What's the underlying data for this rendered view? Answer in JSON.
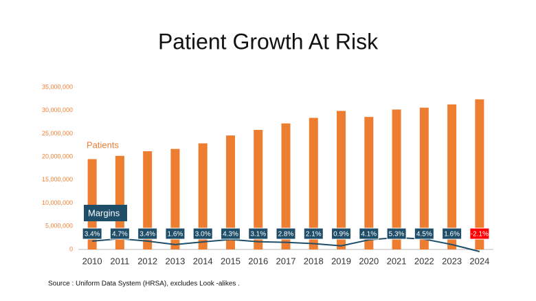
{
  "chart_data": {
    "type": "bar",
    "title": "Patient Growth At Risk",
    "categories": [
      "2010",
      "2011",
      "2012",
      "2013",
      "2014",
      "2015",
      "2016",
      "2017",
      "2018",
      "2019",
      "2020",
      "2021",
      "2022",
      "2023",
      "2024"
    ],
    "series": [
      {
        "name": "Patients",
        "type": "bar",
        "color": "#ed7d31",
        "values": [
          19500000,
          20200000,
          21200000,
          21700000,
          22900000,
          24600000,
          25800000,
          27200000,
          28400000,
          29900000,
          28600000,
          30200000,
          30600000,
          31300000,
          32400000
        ]
      },
      {
        "name": "Margins",
        "type": "line",
        "axis": "y2",
        "color": "#1f4e69",
        "values": [
          3.4,
          4.7,
          3.4,
          1.6,
          3.0,
          4.3,
          3.1,
          2.8,
          2.1,
          0.9,
          4.1,
          5.3,
          4.5,
          1.6,
          -2.1
        ],
        "value_labels": [
          "3.4%",
          "4.7%",
          "3.4%",
          "1.6%",
          "3.0%",
          "4.3%",
          "3.1%",
          "2.8%",
          "2.1%",
          "0.9%",
          "4.1%",
          "5.3%",
          "4.5%",
          "1.6%",
          "-2.1%"
        ],
        "value_label_colors": [
          "#1f4e69",
          "#1f4e69",
          "#1f4e69",
          "#1f4e69",
          "#1f4e69",
          "#1f4e69",
          "#1f4e69",
          "#1f4e69",
          "#1f4e69",
          "#1f4e69",
          "#1f4e69",
          "#1f4e69",
          "#1f4e69",
          "#1f4e69",
          "#ff0000"
        ]
      }
    ],
    "ylim": [
      0,
      35000000
    ],
    "yticks": [
      0,
      {
        "value": 5000000,
        "label": "5,000,000"
      },
      {
        "value": 10000000,
        "label": "10,000,000"
      },
      {
        "value": 15000000,
        "label": "15,000,000"
      },
      {
        "value": 20000000,
        "label": "20,000,000"
      },
      {
        "value": 25000000,
        "label": "25,000,000"
      },
      {
        "value": 30000000,
        "label": "30,000,000"
      },
      {
        "value": 35000000,
        "label": "35,000,000"
      }
    ],
    "y2lim": [
      -1,
      85
    ],
    "grid": false,
    "source": "Source : Uniform Data System (HRSA), excludes Look -alikes ."
  }
}
